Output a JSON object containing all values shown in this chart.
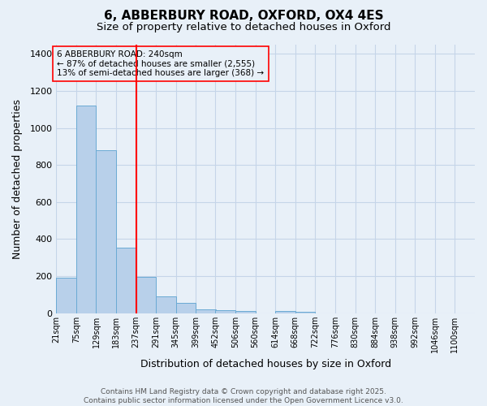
{
  "title": "6, ABBERBURY ROAD, OXFORD, OX4 4ES",
  "subtitle": "Size of property relative to detached houses in Oxford",
  "xlabel": "Distribution of detached houses by size in Oxford",
  "ylabel": "Number of detached properties",
  "bar_color": "#b8d0ea",
  "bar_edge_color": "#6aaad4",
  "background_color": "#e8f0f8",
  "bin_labels": [
    "21sqm",
    "75sqm",
    "129sqm",
    "183sqm",
    "237sqm",
    "291sqm",
    "345sqm",
    "399sqm",
    "452sqm",
    "506sqm",
    "560sqm",
    "614sqm",
    "668sqm",
    "722sqm",
    "776sqm",
    "830sqm",
    "884sqm",
    "938sqm",
    "992sqm",
    "1046sqm",
    "1100sqm"
  ],
  "bin_edges": [
    21,
    75,
    129,
    183,
    237,
    291,
    345,
    399,
    452,
    506,
    560,
    614,
    668,
    722,
    776,
    830,
    884,
    938,
    992,
    1046,
    1100
  ],
  "bar_heights": [
    190,
    1120,
    880,
    355,
    195,
    90,
    57,
    22,
    18,
    12,
    0,
    10,
    7,
    0,
    0,
    0,
    0,
    0,
    0,
    0
  ],
  "red_line_x": 237,
  "annotation_line1": "6 ABBERBURY ROAD: 240sqm",
  "annotation_line2": "← 87% of detached houses are smaller (2,555)",
  "annotation_line3": "13% of semi-detached houses are larger (368) →",
  "ylim": [
    0,
    1450
  ],
  "yticks": [
    0,
    200,
    400,
    600,
    800,
    1000,
    1200,
    1400
  ],
  "footer_line1": "Contains HM Land Registry data © Crown copyright and database right 2025.",
  "footer_line2": "Contains public sector information licensed under the Open Government Licence v3.0.",
  "grid_color": "#c5d5e8",
  "title_fontsize": 11,
  "subtitle_fontsize": 9.5,
  "axis_label_fontsize": 9,
  "tick_fontsize": 7,
  "annotation_fontsize": 7.5,
  "footer_fontsize": 6.5
}
